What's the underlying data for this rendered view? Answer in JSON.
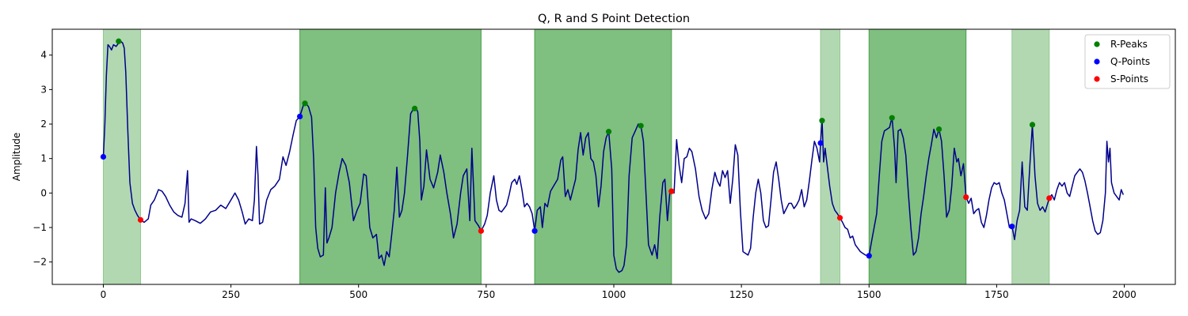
{
  "chart_data": {
    "type": "line",
    "title": "Q, R and S Point Detection",
    "xlabel": "",
    "ylabel": "Amplitude",
    "xlim": [
      -100,
      2100
    ],
    "ylim": [
      -2.65,
      4.75
    ],
    "x_ticks": [
      0,
      250,
      500,
      750,
      1000,
      1250,
      1500,
      1750,
      2000
    ],
    "y_ticks": [
      -2,
      -1,
      0,
      1,
      2,
      3,
      4
    ],
    "grid": false,
    "legend_position": "top-right",
    "colors": {
      "signal": "#00008b",
      "r_peaks": "#008000",
      "q_points": "#0000ff",
      "s_points": "#ff0000",
      "region_light": "#b2d8b2",
      "region_dark": "#7fbf7f"
    },
    "shaded_regions": [
      {
        "x0": 0,
        "x1": 73,
        "shade": "light"
      },
      {
        "x0": 385,
        "x1": 740,
        "shade": "dark"
      },
      {
        "x0": 845,
        "x1": 1113,
        "shade": "dark"
      },
      {
        "x0": 1405,
        "x1": 1443,
        "shade": "light"
      },
      {
        "x0": 1500,
        "x1": 1690,
        "shade": "dark"
      },
      {
        "x0": 1780,
        "x1": 1853,
        "shade": "light"
      }
    ],
    "signal": [
      [
        0,
        1.05
      ],
      [
        3,
        2.0
      ],
      [
        6,
        3.4
      ],
      [
        9,
        4.3
      ],
      [
        12,
        4.25
      ],
      [
        16,
        4.15
      ],
      [
        20,
        4.3
      ],
      [
        25,
        4.25
      ],
      [
        30,
        4.35
      ],
      [
        34,
        4.4
      ],
      [
        38,
        4.35
      ],
      [
        41,
        4.2
      ],
      [
        44,
        3.5
      ],
      [
        48,
        1.8
      ],
      [
        52,
        0.3
      ],
      [
        57,
        -0.3
      ],
      [
        62,
        -0.5
      ],
      [
        67,
        -0.65
      ],
      [
        73,
        -0.78
      ],
      [
        80,
        -0.85
      ],
      [
        88,
        -0.75
      ],
      [
        93,
        -0.35
      ],
      [
        100,
        -0.2
      ],
      [
        108,
        0.1
      ],
      [
        115,
        0.05
      ],
      [
        122,
        -0.1
      ],
      [
        130,
        -0.35
      ],
      [
        138,
        -0.55
      ],
      [
        146,
        -0.65
      ],
      [
        154,
        -0.7
      ],
      [
        160,
        -0.3
      ],
      [
        165,
        0.65
      ],
      [
        168,
        -0.85
      ],
      [
        172,
        -0.75
      ],
      [
        180,
        -0.8
      ],
      [
        190,
        -0.88
      ],
      [
        200,
        -0.75
      ],
      [
        210,
        -0.55
      ],
      [
        220,
        -0.5
      ],
      [
        230,
        -0.35
      ],
      [
        240,
        -0.45
      ],
      [
        250,
        -0.2
      ],
      [
        258,
        0.0
      ],
      [
        265,
        -0.2
      ],
      [
        272,
        -0.55
      ],
      [
        278,
        -0.9
      ],
      [
        285,
        -0.75
      ],
      [
        292,
        -0.8
      ],
      [
        296,
        -0.2
      ],
      [
        300,
        1.35
      ],
      [
        303,
        0.5
      ],
      [
        306,
        -0.9
      ],
      [
        312,
        -0.85
      ],
      [
        320,
        -0.2
      ],
      [
        328,
        0.1
      ],
      [
        336,
        0.2
      ],
      [
        345,
        0.4
      ],
      [
        352,
        1.05
      ],
      [
        358,
        0.8
      ],
      [
        365,
        1.2
      ],
      [
        372,
        1.7
      ],
      [
        378,
        2.1
      ],
      [
        385,
        2.22
      ],
      [
        392,
        2.55
      ],
      [
        397,
        2.6
      ],
      [
        402,
        2.5
      ],
      [
        408,
        2.2
      ],
      [
        412,
        1.0
      ],
      [
        416,
        -1.0
      ],
      [
        420,
        -1.6
      ],
      [
        425,
        -1.85
      ],
      [
        431,
        -1.8
      ],
      [
        435,
        0.15
      ],
      [
        438,
        -1.45
      ],
      [
        442,
        -1.3
      ],
      [
        448,
        -1.0
      ],
      [
        455,
        0.0
      ],
      [
        462,
        0.6
      ],
      [
        468,
        1.0
      ],
      [
        475,
        0.8
      ],
      [
        482,
        0.3
      ],
      [
        490,
        -0.8
      ],
      [
        497,
        -0.5
      ],
      [
        503,
        -0.3
      ],
      [
        510,
        0.55
      ],
      [
        515,
        0.5
      ],
      [
        522,
        -1.0
      ],
      [
        528,
        -1.3
      ],
      [
        535,
        -1.2
      ],
      [
        540,
        -1.9
      ],
      [
        545,
        -1.8
      ],
      [
        550,
        -2.1
      ],
      [
        555,
        -1.7
      ],
      [
        560,
        -1.85
      ],
      [
        565,
        -1.2
      ],
      [
        570,
        -0.5
      ],
      [
        575,
        0.75
      ],
      [
        580,
        -0.7
      ],
      [
        585,
        -0.5
      ],
      [
        590,
        0.0
      ],
      [
        596,
        1.1
      ],
      [
        602,
        2.3
      ],
      [
        608,
        2.45
      ],
      [
        612,
        2.5
      ],
      [
        616,
        2.35
      ],
      [
        620,
        1.5
      ],
      [
        623,
        -0.2
      ],
      [
        628,
        0.2
      ],
      [
        633,
        1.25
      ],
      [
        640,
        0.4
      ],
      [
        647,
        0.15
      ],
      [
        655,
        0.6
      ],
      [
        660,
        1.1
      ],
      [
        667,
        0.6
      ],
      [
        673,
        0.0
      ],
      [
        680,
        -0.6
      ],
      [
        686,
        -1.3
      ],
      [
        693,
        -0.9
      ],
      [
        700,
        0.0
      ],
      [
        705,
        0.5
      ],
      [
        712,
        0.7
      ],
      [
        718,
        -0.8
      ],
      [
        722,
        1.3
      ],
      [
        728,
        -0.8
      ],
      [
        735,
        -0.95
      ],
      [
        740,
        -1.1
      ],
      [
        747,
        -0.9
      ],
      [
        752,
        -0.65
      ],
      [
        758,
        0.0
      ],
      [
        765,
        0.5
      ],
      [
        770,
        -0.2
      ],
      [
        775,
        -0.5
      ],
      [
        780,
        -0.55
      ],
      [
        785,
        -0.45
      ],
      [
        790,
        -0.35
      ],
      [
        795,
        -0.05
      ],
      [
        800,
        0.3
      ],
      [
        806,
        0.4
      ],
      [
        810,
        0.25
      ],
      [
        815,
        0.5
      ],
      [
        820,
        0.1
      ],
      [
        825,
        -0.4
      ],
      [
        830,
        -0.3
      ],
      [
        835,
        -0.4
      ],
      [
        840,
        -0.6
      ],
      [
        845,
        -1.1
      ],
      [
        850,
        -0.5
      ],
      [
        856,
        -0.4
      ],
      [
        860,
        -1.0
      ],
      [
        865,
        -0.3
      ],
      [
        870,
        -0.4
      ],
      [
        876,
        0.05
      ],
      [
        882,
        0.2
      ],
      [
        890,
        0.4
      ],
      [
        896,
        0.95
      ],
      [
        900,
        1.05
      ],
      [
        905,
        -0.1
      ],
      [
        910,
        0.1
      ],
      [
        915,
        -0.2
      ],
      [
        920,
        0.1
      ],
      [
        925,
        0.4
      ],
      [
        930,
        1.25
      ],
      [
        935,
        1.75
      ],
      [
        940,
        1.1
      ],
      [
        945,
        1.6
      ],
      [
        950,
        1.75
      ],
      [
        955,
        1.0
      ],
      [
        960,
        0.9
      ],
      [
        965,
        0.5
      ],
      [
        970,
        -0.4
      ],
      [
        975,
        0.2
      ],
      [
        980,
        1.2
      ],
      [
        985,
        1.6
      ],
      [
        990,
        1.78
      ],
      [
        996,
        0.7
      ],
      [
        1000,
        -1.8
      ],
      [
        1005,
        -2.2
      ],
      [
        1010,
        -2.3
      ],
      [
        1016,
        -2.25
      ],
      [
        1020,
        -2.1
      ],
      [
        1025,
        -1.5
      ],
      [
        1030,
        0.5
      ],
      [
        1036,
        1.6
      ],
      [
        1042,
        1.8
      ],
      [
        1048,
        2.0
      ],
      [
        1053,
        1.95
      ],
      [
        1058,
        1.5
      ],
      [
        1063,
        0.0
      ],
      [
        1068,
        -1.5
      ],
      [
        1075,
        -1.8
      ],
      [
        1080,
        -1.5
      ],
      [
        1085,
        -1.9
      ],
      [
        1090,
        -0.7
      ],
      [
        1096,
        0.3
      ],
      [
        1100,
        0.4
      ],
      [
        1105,
        -0.8
      ],
      [
        1110,
        0.05
      ],
      [
        1113,
        0.1
      ],
      [
        1118,
        0.0
      ],
      [
        1123,
        1.55
      ],
      [
        1128,
        0.8
      ],
      [
        1133,
        0.3
      ],
      [
        1138,
        1.0
      ],
      [
        1143,
        1.05
      ],
      [
        1148,
        1.3
      ],
      [
        1153,
        1.2
      ],
      [
        1160,
        0.7
      ],
      [
        1167,
        -0.1
      ],
      [
        1173,
        -0.5
      ],
      [
        1180,
        -0.75
      ],
      [
        1186,
        -0.6
      ],
      [
        1192,
        0.1
      ],
      [
        1198,
        0.6
      ],
      [
        1203,
        0.35
      ],
      [
        1208,
        0.2
      ],
      [
        1213,
        0.65
      ],
      [
        1218,
        0.45
      ],
      [
        1223,
        0.65
      ],
      [
        1228,
        -0.3
      ],
      [
        1233,
        0.4
      ],
      [
        1238,
        1.4
      ],
      [
        1243,
        1.1
      ],
      [
        1248,
        -0.5
      ],
      [
        1253,
        -1.7
      ],
      [
        1258,
        -1.75
      ],
      [
        1263,
        -1.8
      ],
      [
        1268,
        -1.6
      ],
      [
        1273,
        -0.7
      ],
      [
        1278,
        0.0
      ],
      [
        1283,
        0.4
      ],
      [
        1288,
        0.0
      ],
      [
        1293,
        -0.8
      ],
      [
        1298,
        -1.0
      ],
      [
        1303,
        -0.95
      ],
      [
        1308,
        -0.2
      ],
      [
        1313,
        0.6
      ],
      [
        1318,
        0.9
      ],
      [
        1323,
        0.4
      ],
      [
        1328,
        -0.2
      ],
      [
        1333,
        -0.6
      ],
      [
        1338,
        -0.45
      ],
      [
        1343,
        -0.3
      ],
      [
        1348,
        -0.3
      ],
      [
        1353,
        -0.45
      ],
      [
        1358,
        -0.35
      ],
      [
        1363,
        -0.2
      ],
      [
        1368,
        0.1
      ],
      [
        1373,
        -0.4
      ],
      [
        1378,
        -0.2
      ],
      [
        1383,
        0.35
      ],
      [
        1388,
        0.95
      ],
      [
        1393,
        1.5
      ],
      [
        1398,
        1.3
      ],
      [
        1403,
        0.9
      ],
      [
        1405,
        1.45
      ],
      [
        1408,
        2.1
      ],
      [
        1411,
        0.9
      ],
      [
        1414,
        1.3
      ],
      [
        1418,
        0.8
      ],
      [
        1423,
        0.2
      ],
      [
        1428,
        -0.3
      ],
      [
        1433,
        -0.5
      ],
      [
        1438,
        -0.6
      ],
      [
        1443,
        -0.72
      ],
      [
        1448,
        -0.85
      ],
      [
        1453,
        -1.0
      ],
      [
        1458,
        -1.05
      ],
      [
        1463,
        -1.3
      ],
      [
        1468,
        -1.25
      ],
      [
        1473,
        -1.5
      ],
      [
        1478,
        -1.6
      ],
      [
        1483,
        -1.7
      ],
      [
        1488,
        -1.75
      ],
      [
        1493,
        -1.8
      ],
      [
        1500,
        -1.82
      ],
      [
        1505,
        -1.4
      ],
      [
        1510,
        -1.0
      ],
      [
        1515,
        -0.6
      ],
      [
        1520,
        0.5
      ],
      [
        1525,
        1.5
      ],
      [
        1530,
        1.8
      ],
      [
        1535,
        1.85
      ],
      [
        1540,
        1.9
      ],
      [
        1545,
        2.2
      ],
      [
        1550,
        1.3
      ],
      [
        1553,
        0.3
      ],
      [
        1557,
        1.8
      ],
      [
        1562,
        1.85
      ],
      [
        1567,
        1.6
      ],
      [
        1572,
        1.1
      ],
      [
        1577,
        0.0
      ],
      [
        1582,
        -1.0
      ],
      [
        1587,
        -1.8
      ],
      [
        1592,
        -1.7
      ],
      [
        1597,
        -1.3
      ],
      [
        1602,
        -0.6
      ],
      [
        1607,
        -0.1
      ],
      [
        1612,
        0.5
      ],
      [
        1617,
        1.0
      ],
      [
        1622,
        1.4
      ],
      [
        1627,
        1.85
      ],
      [
        1632,
        1.6
      ],
      [
        1637,
        1.85
      ],
      [
        1642,
        1.5
      ],
      [
        1647,
        0.5
      ],
      [
        1652,
        -0.7
      ],
      [
        1657,
        -0.5
      ],
      [
        1662,
        0.2
      ],
      [
        1667,
        1.3
      ],
      [
        1672,
        0.9
      ],
      [
        1675,
        1.0
      ],
      [
        1680,
        0.5
      ],
      [
        1685,
        0.85
      ],
      [
        1690,
        -0.1
      ],
      [
        1695,
        -0.3
      ],
      [
        1700,
        -0.15
      ],
      [
        1705,
        -0.6
      ],
      [
        1710,
        -0.5
      ],
      [
        1715,
        -0.45
      ],
      [
        1720,
        -0.85
      ],
      [
        1725,
        -1.0
      ],
      [
        1730,
        -0.65
      ],
      [
        1735,
        -0.2
      ],
      [
        1740,
        0.15
      ],
      [
        1745,
        0.3
      ],
      [
        1750,
        0.25
      ],
      [
        1755,
        0.3
      ],
      [
        1760,
        0.0
      ],
      [
        1765,
        -0.2
      ],
      [
        1770,
        -0.6
      ],
      [
        1775,
        -1.0
      ],
      [
        1780,
        -0.95
      ],
      [
        1785,
        -1.35
      ],
      [
        1790,
        -0.8
      ],
      [
        1795,
        -0.5
      ],
      [
        1800,
        0.9
      ],
      [
        1805,
        -0.4
      ],
      [
        1810,
        -0.5
      ],
      [
        1815,
        0.8
      ],
      [
        1820,
        1.98
      ],
      [
        1825,
        0.5
      ],
      [
        1830,
        -0.3
      ],
      [
        1835,
        -0.5
      ],
      [
        1840,
        -0.4
      ],
      [
        1845,
        -0.55
      ],
      [
        1853,
        -0.15
      ],
      [
        1858,
        -0.05
      ],
      [
        1863,
        -0.2
      ],
      [
        1868,
        0.1
      ],
      [
        1873,
        0.3
      ],
      [
        1878,
        0.2
      ],
      [
        1883,
        0.3
      ],
      [
        1888,
        0.0
      ],
      [
        1893,
        -0.1
      ],
      [
        1898,
        0.2
      ],
      [
        1903,
        0.5
      ],
      [
        1908,
        0.6
      ],
      [
        1913,
        0.7
      ],
      [
        1918,
        0.6
      ],
      [
        1923,
        0.35
      ],
      [
        1928,
        0.0
      ],
      [
        1933,
        -0.4
      ],
      [
        1938,
        -0.8
      ],
      [
        1943,
        -1.1
      ],
      [
        1948,
        -1.2
      ],
      [
        1953,
        -1.15
      ],
      [
        1958,
        -0.8
      ],
      [
        1963,
        0.0
      ],
      [
        1966,
        1.5
      ],
      [
        1969,
        0.9
      ],
      [
        1972,
        1.3
      ],
      [
        1975,
        0.3
      ],
      [
        1980,
        0.0
      ],
      [
        1985,
        -0.1
      ],
      [
        1990,
        -0.2
      ],
      [
        1994,
        0.1
      ],
      [
        1998,
        -0.05
      ]
    ],
    "series": [
      {
        "name": "R-Peaks",
        "points": [
          [
            30,
            4.4
          ],
          [
            395,
            2.6
          ],
          [
            610,
            2.45
          ],
          [
            990,
            1.78
          ],
          [
            1053,
            1.95
          ],
          [
            1408,
            2.1
          ],
          [
            1545,
            2.18
          ],
          [
            1637,
            1.85
          ],
          [
            1820,
            1.98
          ]
        ]
      },
      {
        "name": "Q-Points",
        "points": [
          [
            0,
            1.05
          ],
          [
            385,
            2.22
          ],
          [
            845,
            -1.1
          ],
          [
            1405,
            1.45
          ],
          [
            1500,
            -1.82
          ],
          [
            1780,
            -0.97
          ]
        ]
      },
      {
        "name": "S-Points",
        "points": [
          [
            73,
            -0.78
          ],
          [
            740,
            -1.1
          ],
          [
            1113,
            0.05
          ],
          [
            1443,
            -0.72
          ],
          [
            1690,
            -0.12
          ],
          [
            1853,
            -0.15
          ]
        ]
      }
    ]
  }
}
